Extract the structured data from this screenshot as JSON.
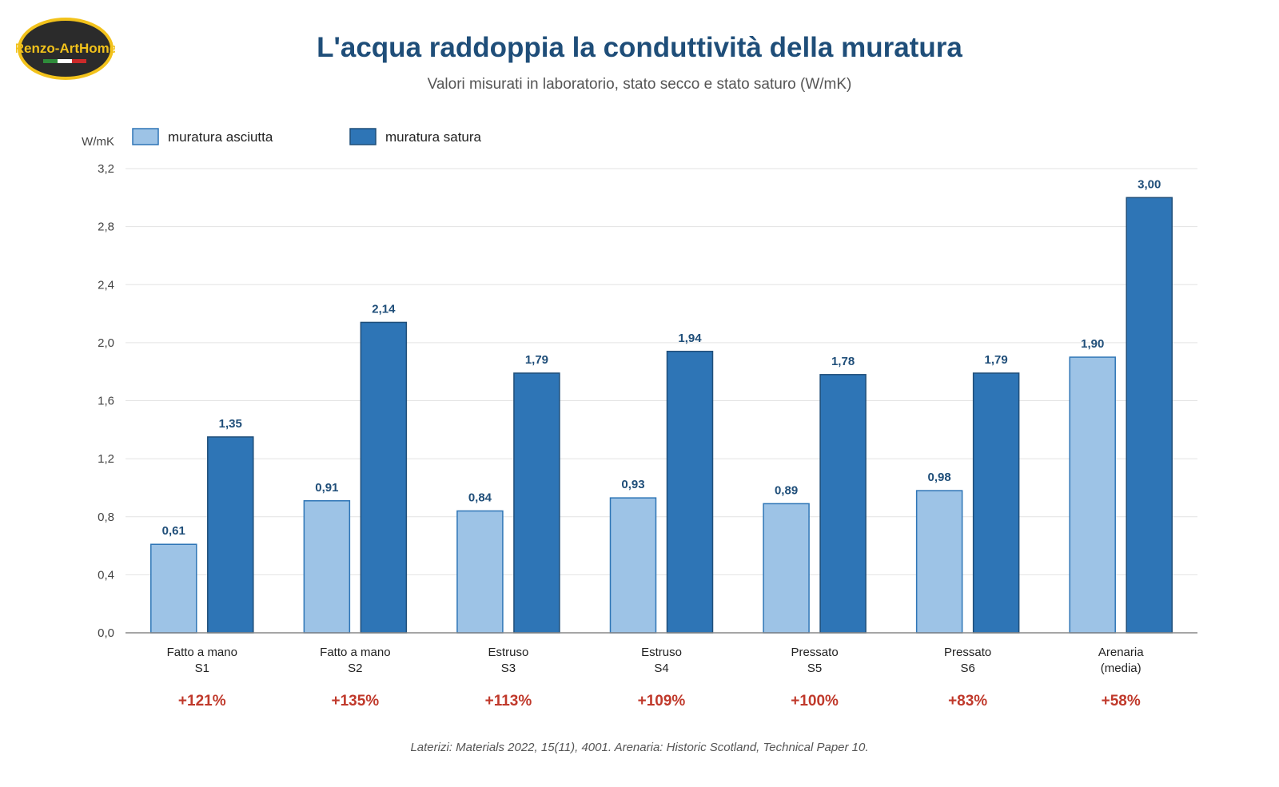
{
  "header": {
    "logo_text": "Renzo-ArtHome",
    "title": "L'acqua raddoppia la conduttività della muratura",
    "subtitle": "Valori misurati in laboratorio, stato secco e stato saturo (W/mK)"
  },
  "footer": {
    "source": "Laterizi: Materials 2022, 15(11), 4001. Arenaria: Historic Scotland, Technical Paper 10."
  },
  "colors": {
    "dry": "#9dc3e6",
    "dry_stroke": "#2e75b6",
    "saturated": "#2e75b6",
    "saturated_stroke": "#1f4e79",
    "value_label": "#1f4e79",
    "percent": "#c0392b",
    "grid": "#e3e3e3",
    "axis": "#888888"
  },
  "chart_data": {
    "type": "bar",
    "title": "L'acqua raddoppia la conduttività della muratura",
    "subtitle": "Valori misurati in laboratorio, stato secco e stato saturo (W/mK)",
    "ylabel": "W/mK",
    "ylim": [
      0,
      3.2
    ],
    "yticks": [
      "0,0",
      "0,4",
      "0,8",
      "1,2",
      "1,6",
      "2,0",
      "2,4",
      "2,8",
      "3,2"
    ],
    "ytick_values": [
      0,
      0.4,
      0.8,
      1.2,
      1.6,
      2.0,
      2.4,
      2.8,
      3.2
    ],
    "grid": true,
    "legend_position": "top-left",
    "categories": [
      [
        "Fatto a mano",
        "S1"
      ],
      [
        "Fatto a mano",
        "S2"
      ],
      [
        "Estruso",
        "S3"
      ],
      [
        "Estruso",
        "S4"
      ],
      [
        "Pressato",
        "S5"
      ],
      [
        "Pressato",
        "S6"
      ],
      [
        "Arenaria",
        "(media)"
      ]
    ],
    "series": [
      {
        "name": "muratura asciutta",
        "values": [
          0.61,
          0.91,
          0.84,
          0.93,
          0.89,
          0.98,
          1.9
        ],
        "labels": [
          "0,61",
          "0,91",
          "0,84",
          "0,93",
          "0,89",
          "0,98",
          "1,90"
        ]
      },
      {
        "name": "muratura satura",
        "values": [
          1.35,
          2.14,
          1.79,
          1.94,
          1.78,
          1.79,
          3.0
        ],
        "labels": [
          "1,35",
          "2,14",
          "1,79",
          "1,94",
          "1,78",
          "1,79",
          "3,00"
        ]
      }
    ],
    "increase_labels": [
      "+121%",
      "+135%",
      "+113%",
      "+109%",
      "+100%",
      "+83%",
      "+58%"
    ]
  }
}
